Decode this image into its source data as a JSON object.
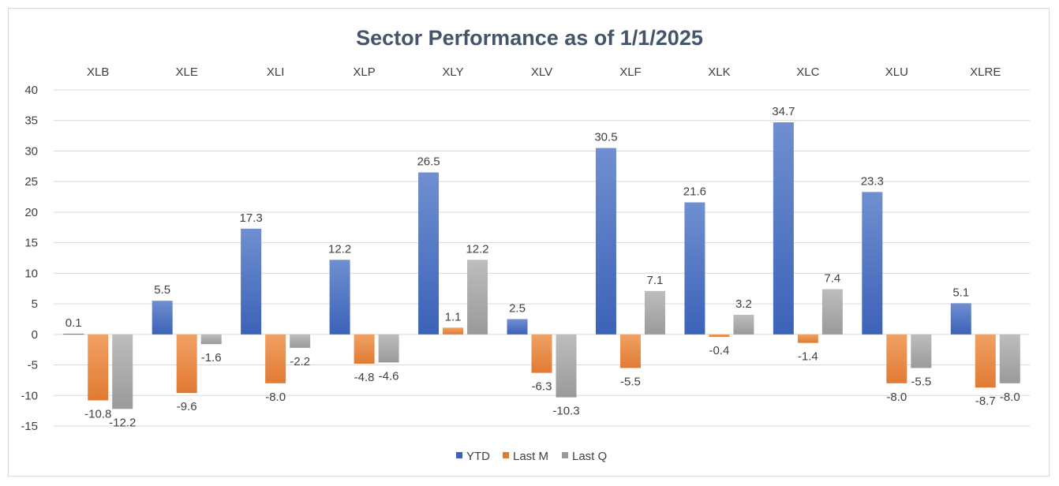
{
  "chart_data": {
    "type": "bar",
    "title": "Sector Performance as of 1/1/2025",
    "categories": [
      "XLB",
      "XLE",
      "XLI",
      "XLP",
      "XLY",
      "XLV",
      "XLF",
      "XLK",
      "XLC",
      "XLU",
      "XLRE"
    ],
    "series": [
      {
        "name": "YTD",
        "values": [
          0.1,
          5.5,
          17.3,
          12.2,
          26.5,
          2.5,
          30.5,
          21.6,
          34.7,
          23.3,
          5.1
        ]
      },
      {
        "name": "Last M",
        "values": [
          -10.8,
          -9.6,
          -8.0,
          -4.8,
          1.1,
          -6.3,
          -5.5,
          -0.4,
          -1.4,
          -8.0,
          -8.7
        ]
      },
      {
        "name": "Last Q",
        "values": [
          -12.2,
          -1.6,
          -2.2,
          -4.6,
          12.2,
          -10.3,
          7.1,
          3.2,
          7.4,
          -5.5,
          -8.0
        ]
      }
    ],
    "ylim": [
      -15,
      40
    ],
    "yticks": [
      40,
      35,
      30,
      25,
      20,
      15,
      10,
      5,
      0,
      -5,
      -10,
      -15
    ],
    "grid": true,
    "legend_position": "bottom",
    "category_label_position": "top"
  },
  "colors": {
    "YTD_top": "#6f8fd0",
    "YTD_bottom": "#3c62b8",
    "LastM_top": "#f0a165",
    "LastM_bottom": "#e27a32",
    "LastQ_top": "#bdbdbd",
    "LastQ_bottom": "#9a9a9a",
    "grid": "#d9d9d9",
    "title": "#44546a"
  }
}
